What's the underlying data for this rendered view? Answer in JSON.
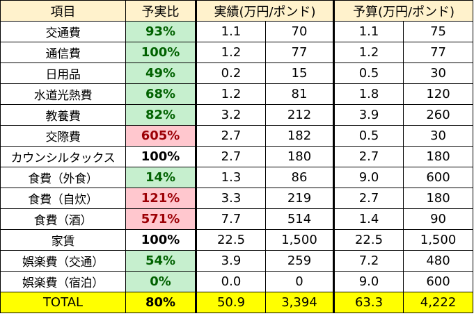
{
  "headers": {
    "item": "項目",
    "ratio": "予実比",
    "actual": "実績(万円/ポンド)",
    "budget": "予算(万円/ポンド)"
  },
  "rows": [
    {
      "item": "交通費",
      "ratio": "93%",
      "status": "green",
      "actual_man": "1.1",
      "actual_gbp": "70",
      "budget_man": "1.1",
      "budget_gbp": "75"
    },
    {
      "item": "通信費",
      "ratio": "100%",
      "status": "green",
      "actual_man": "1.2",
      "actual_gbp": "77",
      "budget_man": "1.2",
      "budget_gbp": "77"
    },
    {
      "item": "日用品",
      "ratio": "49%",
      "status": "green",
      "actual_man": "0.2",
      "actual_gbp": "15",
      "budget_man": "0.5",
      "budget_gbp": "30"
    },
    {
      "item": "水道光熱費",
      "ratio": "68%",
      "status": "green",
      "actual_man": "1.2",
      "actual_gbp": "81",
      "budget_man": "1.8",
      "budget_gbp": "120"
    },
    {
      "item": "教養費",
      "ratio": "82%",
      "status": "green",
      "actual_man": "3.2",
      "actual_gbp": "212",
      "budget_man": "3.9",
      "budget_gbp": "260"
    },
    {
      "item": "交際費",
      "ratio": "605%",
      "status": "red",
      "actual_man": "2.7",
      "actual_gbp": "182",
      "budget_man": "0.5",
      "budget_gbp": "30"
    },
    {
      "item": "カウンシルタックス",
      "ratio": "100%",
      "status": "plain",
      "actual_man": "2.7",
      "actual_gbp": "180",
      "budget_man": "2.7",
      "budget_gbp": "180"
    },
    {
      "item": "食費（外食）",
      "ratio": "14%",
      "status": "green",
      "actual_man": "1.3",
      "actual_gbp": "86",
      "budget_man": "9.0",
      "budget_gbp": "600"
    },
    {
      "item": "食費（自炊）",
      "ratio": "121%",
      "status": "red",
      "actual_man": "3.3",
      "actual_gbp": "219",
      "budget_man": "2.7",
      "budget_gbp": "180"
    },
    {
      "item": "食費（酒）",
      "ratio": "571%",
      "status": "red",
      "actual_man": "7.7",
      "actual_gbp": "514",
      "budget_man": "1.4",
      "budget_gbp": "90"
    },
    {
      "item": "家賃",
      "ratio": "100%",
      "status": "plain",
      "actual_man": "22.5",
      "actual_gbp": "1,500",
      "budget_man": "22.5",
      "budget_gbp": "1,500"
    },
    {
      "item": "娯楽費（交通）",
      "ratio": "54%",
      "status": "green",
      "actual_man": "3.9",
      "actual_gbp": "259",
      "budget_man": "7.2",
      "budget_gbp": "480"
    },
    {
      "item": "娯楽費（宿泊）",
      "ratio": "0%",
      "status": "green",
      "actual_man": "0.0",
      "actual_gbp": "0",
      "budget_man": "9.0",
      "budget_gbp": "600"
    }
  ],
  "total": {
    "item": "TOTAL",
    "ratio": "80%",
    "actual_man": "50.9",
    "actual_gbp": "3,394",
    "budget_man": "63.3",
    "budget_gbp": "4,222"
  },
  "colors": {
    "header_bg": "#fff2cc",
    "total_bg": "#ffff00",
    "good_bg": "#c6efce",
    "good_text": "#006100",
    "over_bg": "#ffc7ce",
    "over_text": "#9c0006"
  }
}
